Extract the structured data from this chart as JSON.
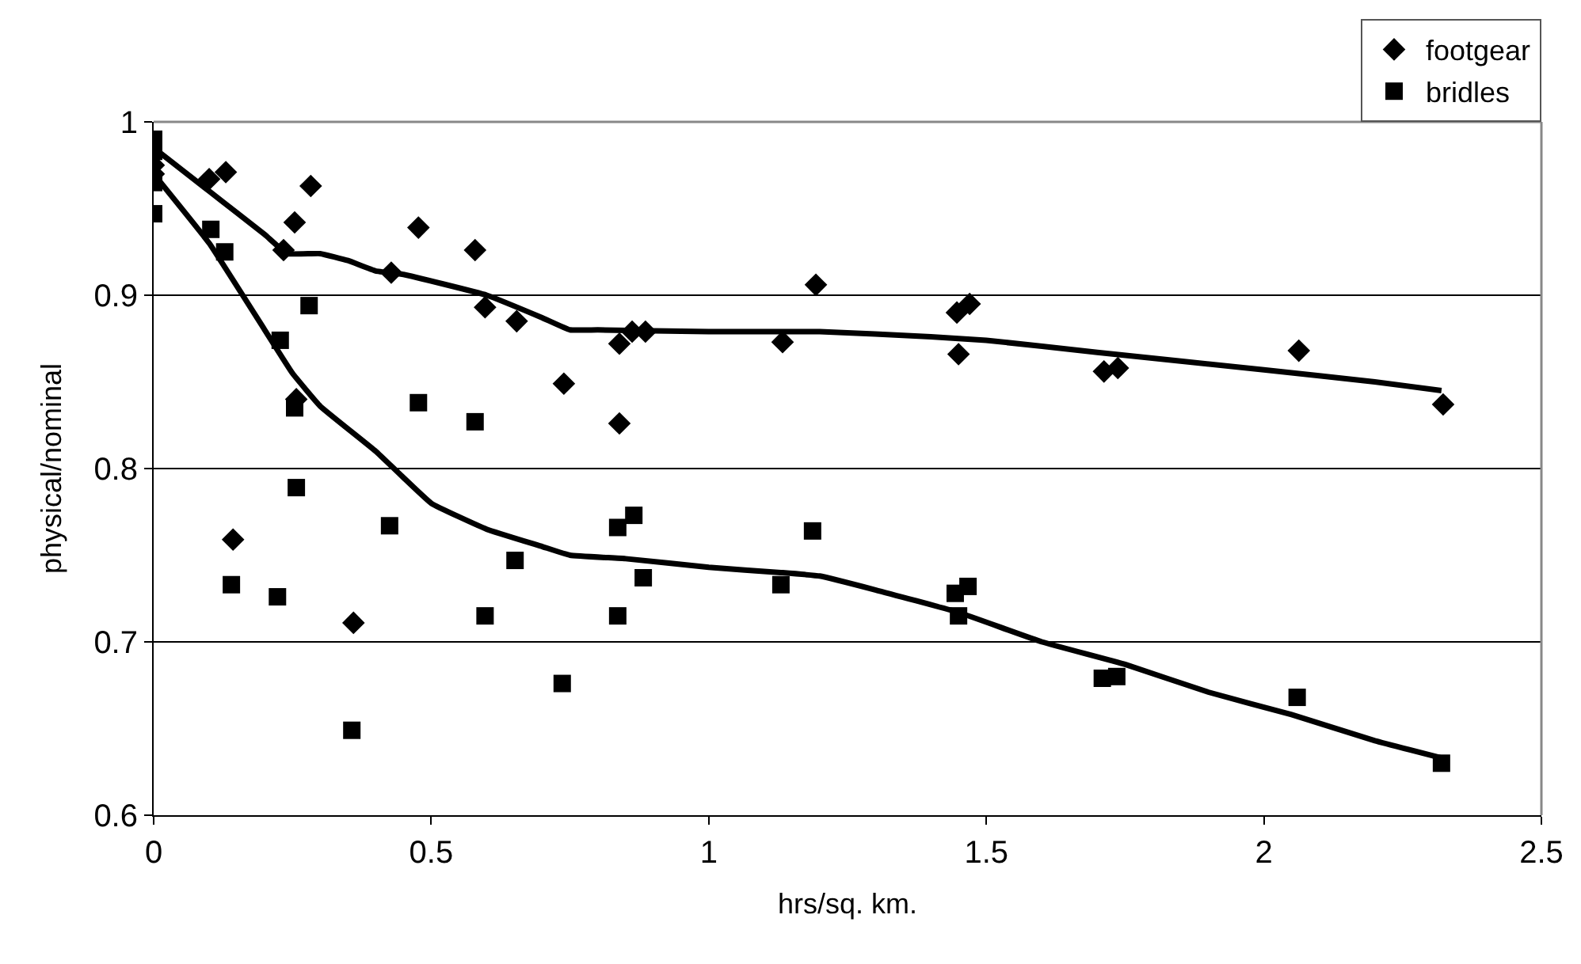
{
  "chart_data": {
    "type": "scatter",
    "xlabel": "hrs/sq. km.",
    "ylabel": "physical/nominal",
    "xlim": [
      0,
      2.5
    ],
    "xticks": [
      0,
      0.5,
      1,
      1.5,
      2,
      2.5
    ],
    "ylim": [
      0.6,
      1
    ],
    "yticks": [
      0.6,
      0.7,
      0.8,
      0.9,
      1
    ],
    "grid": "y",
    "legend": "top right",
    "series": [
      {
        "name": "footgear",
        "color": "#000000",
        "marker": "diamond",
        "x": [
          0,
          0,
          0.1,
          0.13,
          0.234,
          0.254,
          0.283,
          0.143,
          0.257,
          0.36,
          0.428,
          0.477,
          0.579,
          0.597,
          0.654,
          0.739,
          0.839,
          0.839,
          0.862,
          0.886,
          1.133,
          1.193,
          1.447,
          1.47,
          1.45,
          1.712,
          1.737,
          2.063,
          2.323
        ],
        "values": [
          0.975,
          0.97,
          0.967,
          0.971,
          0.926,
          0.942,
          0.963,
          0.759,
          0.84,
          0.711,
          0.913,
          0.939,
          0.926,
          0.893,
          0.885,
          0.849,
          0.872,
          0.826,
          0.879,
          0.879,
          0.873,
          0.906,
          0.89,
          0.895,
          0.866,
          0.856,
          0.858,
          0.868,
          0.837
        ]
      },
      {
        "name": "bridles",
        "color": "#000000",
        "marker": "square",
        "x": [
          0,
          0,
          0,
          0,
          0.103,
          0.128,
          0.28,
          0.228,
          0.254,
          0.257,
          0.14,
          0.223,
          0.357,
          0.425,
          0.477,
          0.579,
          0.597,
          0.651,
          0.736,
          0.836,
          0.836,
          0.865,
          0.882,
          1.13,
          1.187,
          1.444,
          1.467,
          1.45,
          1.709,
          1.735,
          2.06,
          2.32
        ],
        "values": [
          0.99,
          0.983,
          0.965,
          0.947,
          0.938,
          0.925,
          0.894,
          0.874,
          0.835,
          0.789,
          0.733,
          0.726,
          0.649,
          0.767,
          0.838,
          0.827,
          0.715,
          0.747,
          0.676,
          0.715,
          0.766,
          0.773,
          0.737,
          0.733,
          0.764,
          0.728,
          0.732,
          0.715,
          0.679,
          0.68,
          0.668,
          0.63
        ]
      },
      {
        "type": "line",
        "color": "#000000",
        "marker": "none",
        "line_style": "solid",
        "x": [
          0,
          0.1,
          0.2,
          0.24,
          0.3,
          0.35,
          0.4,
          0.45,
          0.6,
          0.7,
          0.75,
          0.8,
          1.0,
          1.2,
          1.4,
          1.5,
          1.7,
          2.0,
          2.2,
          2.32
        ],
        "values": [
          0.985,
          0.96,
          0.935,
          0.924,
          0.924,
          0.92,
          0.914,
          0.912,
          0.9,
          0.887,
          0.88,
          0.88,
          0.879,
          0.879,
          0.876,
          0.874,
          0.867,
          0.857,
          0.85,
          0.845
        ]
      },
      {
        "type": "line",
        "color": "#000000",
        "marker": "none",
        "line_style": "solid",
        "x": [
          0,
          0.1,
          0.2,
          0.25,
          0.3,
          0.4,
          0.5,
          0.6,
          0.7,
          0.75,
          0.85,
          1.0,
          1.13,
          1.2,
          1.3,
          1.45,
          1.6,
          1.75,
          1.9,
          2.05,
          2.2,
          2.32
        ],
        "values": [
          0.97,
          0.93,
          0.88,
          0.855,
          0.836,
          0.81,
          0.78,
          0.765,
          0.755,
          0.75,
          0.748,
          0.743,
          0.74,
          0.738,
          0.73,
          0.717,
          0.7,
          0.687,
          0.671,
          0.658,
          0.643,
          0.633
        ]
      }
    ]
  }
}
